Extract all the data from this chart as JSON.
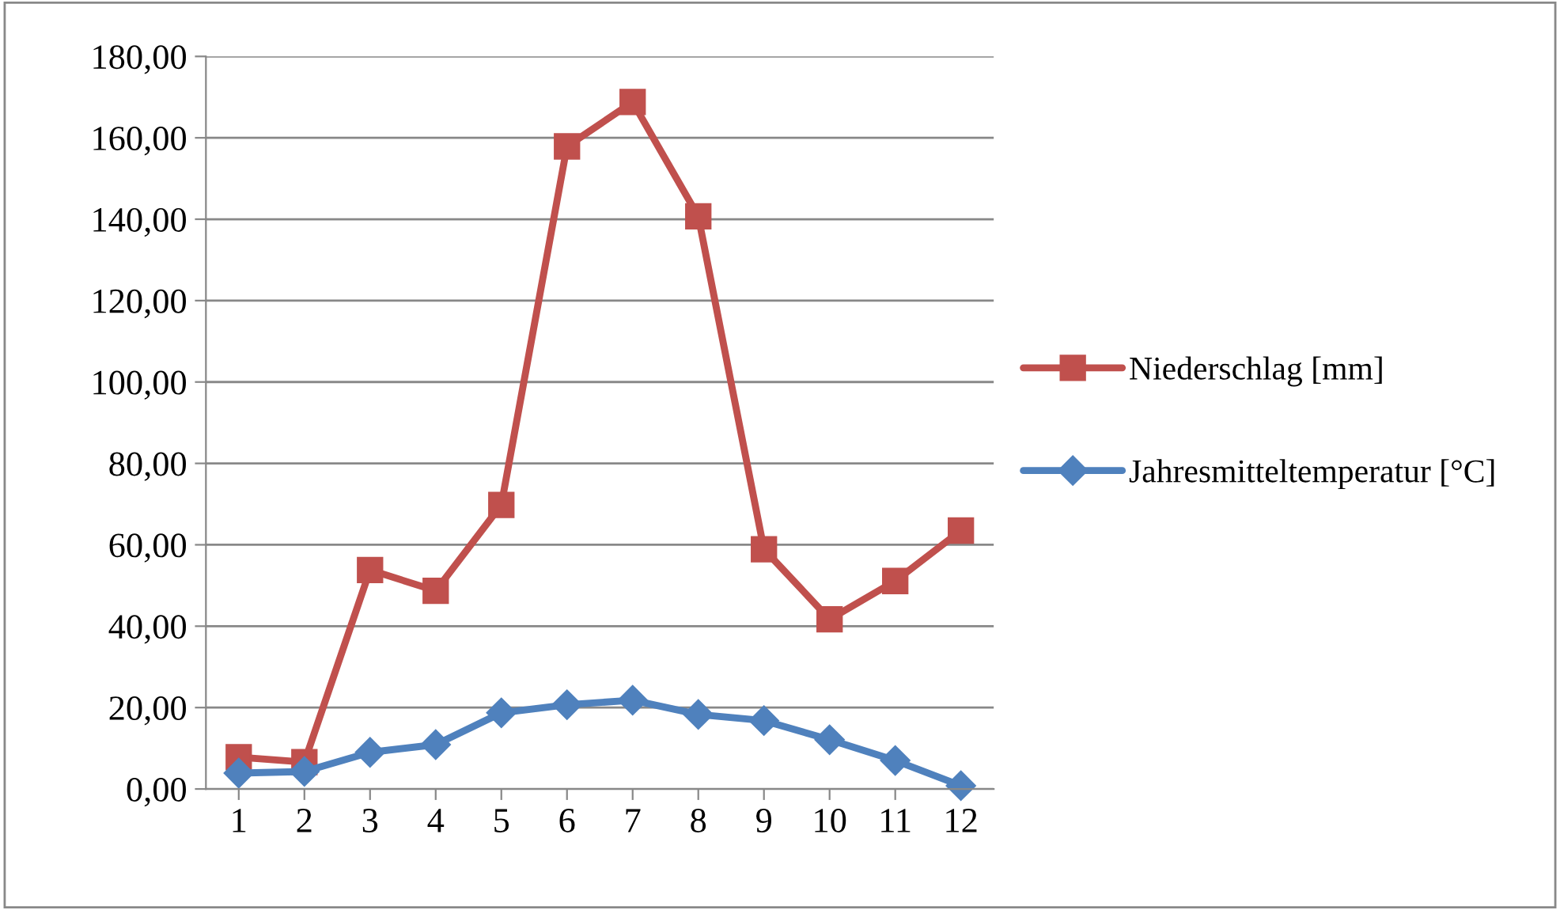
{
  "chart_data": {
    "type": "line",
    "categories": [
      "1",
      "2",
      "3",
      "4",
      "5",
      "6",
      "7",
      "8",
      "9",
      "10",
      "11",
      "12"
    ],
    "series": [
      {
        "name": "Niederschlag [mm]",
        "color": "#c0504d",
        "marker": "square",
        "values": [
          7.8,
          6.6,
          53.8,
          48.7,
          69.8,
          157.9,
          168.8,
          140.7,
          58.9,
          41.7,
          51.1,
          63.5
        ]
      },
      {
        "name": "Jahresmitteltemperatur [°C]",
        "color": "#4f81bd",
        "marker": "diamond",
        "values": [
          3.9,
          4.3,
          9.0,
          10.9,
          18.7,
          20.7,
          21.8,
          18.3,
          16.8,
          12.1,
          7.0,
          0.8
        ]
      }
    ],
    "ylim": [
      0,
      180
    ],
    "yticks": [
      {
        "value": 0,
        "label": "0,00"
      },
      {
        "value": 20,
        "label": "20,00"
      },
      {
        "value": 40,
        "label": "40,00"
      },
      {
        "value": 60,
        "label": "60,00"
      },
      {
        "value": 80,
        "label": "80,00"
      },
      {
        "value": 100,
        "label": "100,00"
      },
      {
        "value": 120,
        "label": "120,00"
      },
      {
        "value": 140,
        "label": "140,00"
      },
      {
        "value": 160,
        "label": "160,00"
      },
      {
        "value": 180,
        "label": "180,00"
      }
    ],
    "grid": "y",
    "legend": "right",
    "line_style": "solid"
  }
}
